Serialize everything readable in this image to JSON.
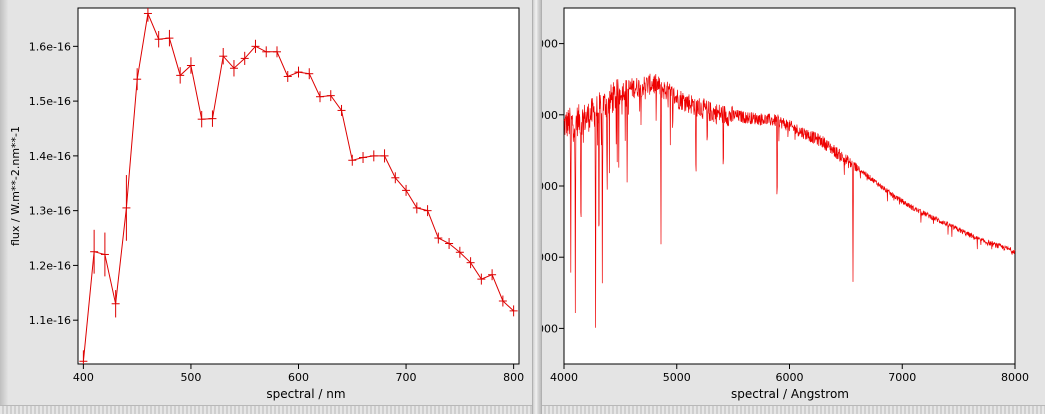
{
  "chart_data": [
    {
      "type": "line",
      "xlabel": "spectral / nm",
      "ylabel": "flux / W.m**-2.nm**-1",
      "xlim": [
        395,
        805
      ],
      "ylim": [
        1.02e-16,
        1.67e-16
      ],
      "x_ticks": [
        400,
        500,
        600,
        700,
        800
      ],
      "x_tick_labels": [
        "400",
        "500",
        "600",
        "700",
        "800"
      ],
      "y_ticks": [
        1.1e-16,
        1.2e-16,
        1.3e-16,
        1.4e-16,
        1.5e-16,
        1.6e-16
      ],
      "y_tick_labels": [
        "1.1e-16",
        "1.2e-16",
        "1.3e-16",
        "1.4e-16",
        "1.5e-16",
        "1.6e-16"
      ],
      "color": "#dd0000",
      "series": [
        {
          "x": [
            400,
            410,
            420,
            430,
            440,
            450,
            460,
            470,
            480,
            490,
            500,
            510,
            520,
            530,
            540,
            550,
            560,
            570,
            580,
            590,
            600,
            610,
            620,
            630,
            640,
            650,
            660,
            670,
            680,
            690,
            700,
            710,
            720,
            730,
            740,
            750,
            760,
            770,
            780,
            790,
            800
          ],
          "y": [
            1.025e-16,
            1.225e-16,
            1.22e-16,
            1.13e-16,
            1.305e-16,
            1.54e-16,
            1.66e-16,
            1.613e-16,
            1.615e-16,
            1.547e-16,
            1.565e-16,
            1.467e-16,
            1.468e-16,
            1.582e-16,
            1.56e-16,
            1.578e-16,
            1.6e-16,
            1.59e-16,
            1.59e-16,
            1.545e-16,
            1.553e-16,
            1.55e-16,
            1.508e-16,
            1.51e-16,
            1.483e-16,
            1.392e-16,
            1.397e-16,
            1.4e-16,
            1.4e-16,
            1.36e-16,
            1.337e-16,
            1.305e-16,
            1.3e-16,
            1.25e-16,
            1.24e-16,
            1.224e-16,
            1.205e-16,
            1.175e-16,
            1.183e-16,
            1.135e-16,
            1.117e-16
          ],
          "err": [
            2e-18,
            4e-18,
            4e-18,
            2.5e-18,
            6e-18,
            2e-18,
            1.5e-18,
            1.5e-18,
            1.5e-18,
            1.5e-18,
            1.5e-18,
            1.5e-18,
            1.5e-18,
            1.5e-18,
            1.5e-18,
            1.2e-18,
            1.2e-18,
            1e-18,
            1e-18,
            1e-18,
            1e-18,
            1e-18,
            1e-18,
            1e-18,
            1e-18,
            1e-18,
            1e-18,
            1e-18,
            1.2e-18,
            1e-18,
            1e-18,
            1e-18,
            1e-18,
            1e-18,
            1e-18,
            1e-18,
            1e-18,
            1e-18,
            1e-18,
            1e-18,
            1e-18
          ]
        }
      ]
    },
    {
      "type": "line",
      "xlabel": "spectral / Angstrom",
      "ylabel": "",
      "xlim": [
        4000,
        8000
      ],
      "ylim": [
        0,
        100
      ],
      "x_ticks": [
        4000,
        5000,
        6000,
        7000,
        8000
      ],
      "x_tick_labels": [
        "4000",
        "5000",
        "6000",
        "7000",
        "8000"
      ],
      "y_ticks": [
        10,
        30,
        50,
        70,
        90
      ],
      "y_tick_labels": [
        "000",
        "000",
        "000",
        "000",
        "000"
      ],
      "color": "#ee0000",
      "continuum_points": [
        [
          4000,
          69
        ],
        [
          4200,
          71
        ],
        [
          4500,
          78
        ],
        [
          4800,
          80
        ],
        [
          5000,
          76
        ],
        [
          5300,
          72
        ],
        [
          5600,
          70
        ],
        [
          5900,
          69
        ],
        [
          6100,
          66
        ],
        [
          6300,
          63
        ],
        [
          6500,
          58
        ],
        [
          6700,
          53
        ],
        [
          6900,
          48
        ],
        [
          7100,
          44
        ],
        [
          7300,
          41
        ],
        [
          7500,
          38
        ],
        [
          7700,
          35
        ],
        [
          8000,
          32
        ]
      ],
      "absorption_lines": [
        [
          4060,
          45
        ],
        [
          4100,
          57
        ],
        [
          4150,
          40
        ],
        [
          4280,
          62
        ],
        [
          4310,
          57
        ],
        [
          4340,
          50
        ],
        [
          4383,
          28
        ],
        [
          4560,
          25
        ],
        [
          4860,
          45
        ],
        [
          5170,
          30
        ],
        [
          5270,
          15
        ],
        [
          5890,
          30
        ],
        [
          6563,
          34
        ]
      ]
    }
  ]
}
